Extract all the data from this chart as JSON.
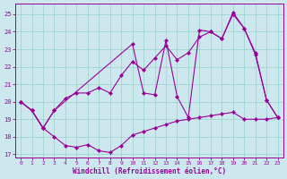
{
  "bg_color": "#cce8ee",
  "line_color": "#990099",
  "xlim_min": -0.5,
  "xlim_max": 23.5,
  "ylim_min": 16.8,
  "ylim_max": 25.6,
  "yticks": [
    17,
    18,
    19,
    20,
    21,
    22,
    23,
    24,
    25
  ],
  "xticks": [
    0,
    1,
    2,
    3,
    4,
    5,
    6,
    7,
    8,
    9,
    10,
    11,
    12,
    13,
    14,
    15,
    16,
    17,
    18,
    19,
    20,
    21,
    22,
    23
  ],
  "xlabel": "Windchill (Refroidissement éolien,°C)",
  "line1_x": [
    0,
    1,
    2,
    3,
    4,
    5,
    6,
    7,
    8,
    9,
    10,
    11,
    12,
    13,
    14,
    15,
    16,
    17,
    18,
    19,
    20,
    21,
    22,
    23
  ],
  "line1_y": [
    20.0,
    19.5,
    18.5,
    18.0,
    17.5,
    17.4,
    17.55,
    17.2,
    17.1,
    17.5,
    18.1,
    18.3,
    18.5,
    18.7,
    18.9,
    19.0,
    19.1,
    19.2,
    19.3,
    19.4,
    19.0,
    19.0,
    19.0,
    19.1
  ],
  "line2_x": [
    0,
    1,
    2,
    3,
    4,
    5,
    6,
    7,
    8,
    9,
    10,
    11,
    12,
    13,
    14,
    15,
    16,
    17,
    18,
    19,
    20,
    21,
    22,
    23
  ],
  "line2_y": [
    20.0,
    19.5,
    18.5,
    19.5,
    20.2,
    20.5,
    20.5,
    20.8,
    20.5,
    21.5,
    22.3,
    21.8,
    22.5,
    23.2,
    22.4,
    22.8,
    23.7,
    24.0,
    23.6,
    25.0,
    24.2,
    22.8,
    20.1,
    19.1
  ],
  "line3_x": [
    0,
    1,
    2,
    3,
    10,
    11,
    12,
    13,
    14,
    15,
    16,
    17,
    18,
    19,
    20,
    21,
    22,
    23
  ],
  "line3_y": [
    20.0,
    19.5,
    18.5,
    19.5,
    23.3,
    20.5,
    20.4,
    23.5,
    20.3,
    19.1,
    24.1,
    24.0,
    23.6,
    25.1,
    24.2,
    22.7,
    20.1,
    19.1
  ]
}
